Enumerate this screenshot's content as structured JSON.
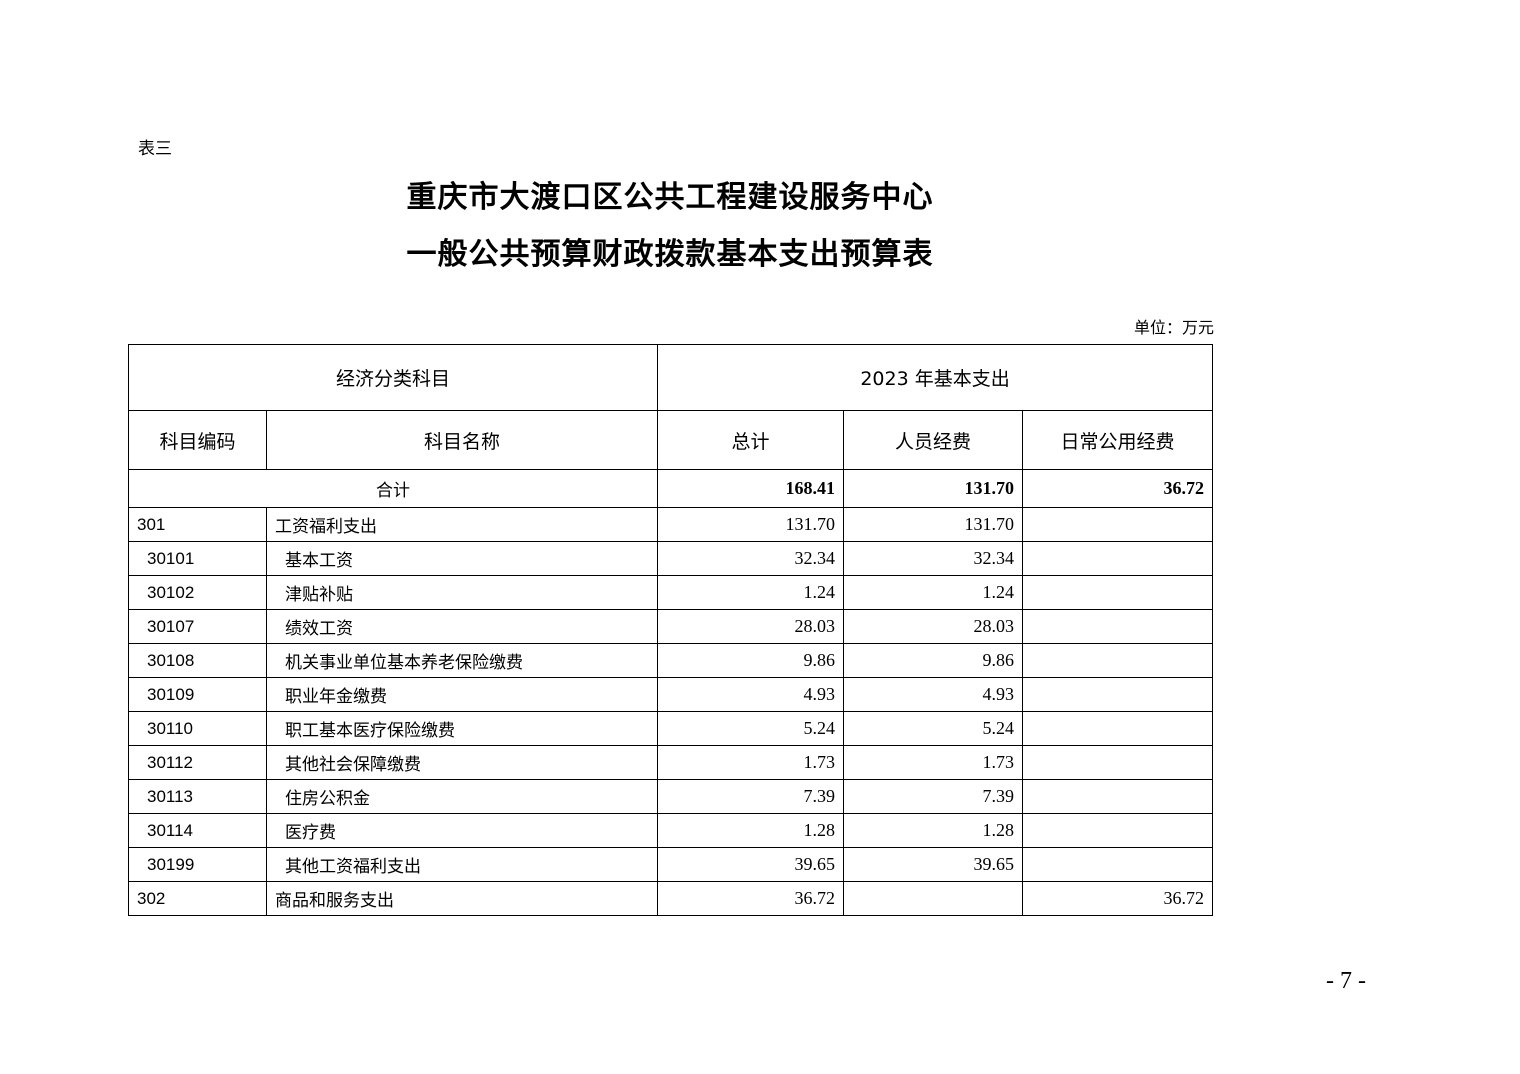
{
  "table_label": "表三",
  "title_line1": "重庆市大渡口区公共工程建设服务中心",
  "title_line2": "一般公共预算财政拨款基本支出预算表",
  "unit": "单位：万元",
  "header": {
    "group_left": "经济分类科目",
    "group_right": "2023 年基本支出",
    "code": "科目编码",
    "name": "科目名称",
    "total": "总计",
    "personnel": "人员经费",
    "public": "日常公用经费"
  },
  "total_row": {
    "label": "合计",
    "total": "168.41",
    "personnel": "131.70",
    "public": "36.72"
  },
  "rows": [
    {
      "code": "301",
      "name": "工资福利支出",
      "total": "131.70",
      "personnel": "131.70",
      "public": "",
      "level": 1
    },
    {
      "code": "30101",
      "name": "基本工资",
      "total": "32.34",
      "personnel": "32.34",
      "public": "",
      "level": 2
    },
    {
      "code": "30102",
      "name": "津贴补贴",
      "total": "1.24",
      "personnel": "1.24",
      "public": "",
      "level": 2
    },
    {
      "code": "30107",
      "name": "绩效工资",
      "total": "28.03",
      "personnel": "28.03",
      "public": "",
      "level": 2
    },
    {
      "code": "30108",
      "name": "机关事业单位基本养老保险缴费",
      "total": "9.86",
      "personnel": "9.86",
      "public": "",
      "level": 2
    },
    {
      "code": "30109",
      "name": "职业年金缴费",
      "total": "4.93",
      "personnel": "4.93",
      "public": "",
      "level": 2
    },
    {
      "code": "30110",
      "name": "职工基本医疗保险缴费",
      "total": "5.24",
      "personnel": "5.24",
      "public": "",
      "level": 2
    },
    {
      "code": "30112",
      "name": "其他社会保障缴费",
      "total": "1.73",
      "personnel": "1.73",
      "public": "",
      "level": 2
    },
    {
      "code": "30113",
      "name": "住房公积金",
      "total": "7.39",
      "personnel": "7.39",
      "public": "",
      "level": 2
    },
    {
      "code": "30114",
      "name": "医疗费",
      "total": "1.28",
      "personnel": "1.28",
      "public": "",
      "level": 2
    },
    {
      "code": "30199",
      "name": "其他工资福利支出",
      "total": "39.65",
      "personnel": "39.65",
      "public": "",
      "level": 2
    },
    {
      "code": "302",
      "name": "商品和服务支出",
      "total": "36.72",
      "personnel": "",
      "public": "36.72",
      "level": 1
    }
  ],
  "page_number": "- 7 -"
}
